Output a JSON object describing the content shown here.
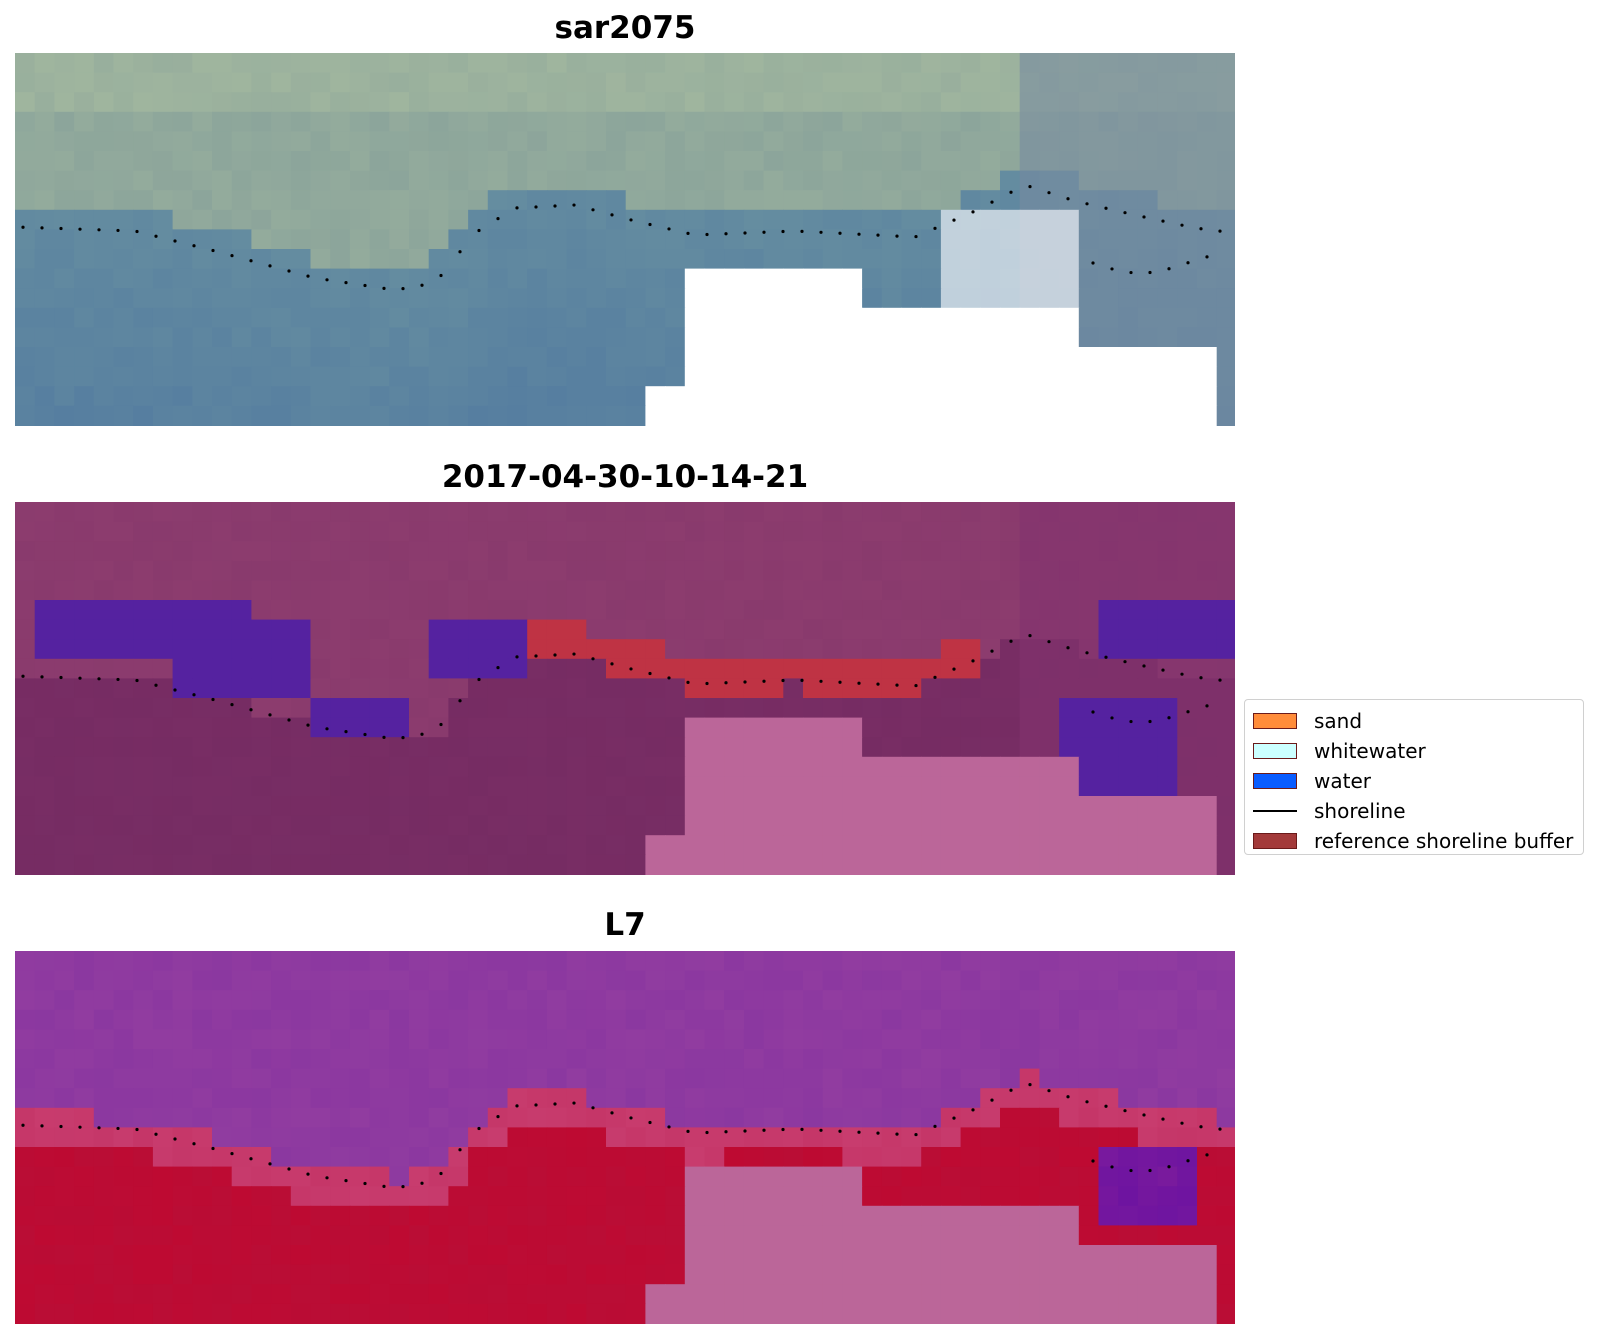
{
  "panels": [
    {
      "id": "rgb",
      "title": "sar2075"
    },
    {
      "id": "classified",
      "title": "2017-04-30-10-14-21"
    },
    {
      "id": "mndwi",
      "title": "L7"
    }
  ],
  "legend": {
    "items": [
      {
        "label": "sand",
        "color": "#ff8c3a",
        "kind": "patch"
      },
      {
        "label": "whitewater",
        "color": "#ccffff",
        "kind": "patch"
      },
      {
        "label": "water",
        "color": "#0a5cff",
        "kind": "patch"
      },
      {
        "label": "shoreline",
        "color": "#000000",
        "kind": "line"
      },
      {
        "label": "reference shoreline buffer",
        "color": "#a33a3a",
        "kind": "patch"
      }
    ]
  },
  "colors": {
    "nodata_rgb": "#ffffff",
    "nodata_overlay": "#bb6699",
    "water_class": "#5522a0",
    "buffer": "#bf3344",
    "mndwi_water": "#b8002e",
    "mndwi_land": "#8e3a9e"
  }
}
